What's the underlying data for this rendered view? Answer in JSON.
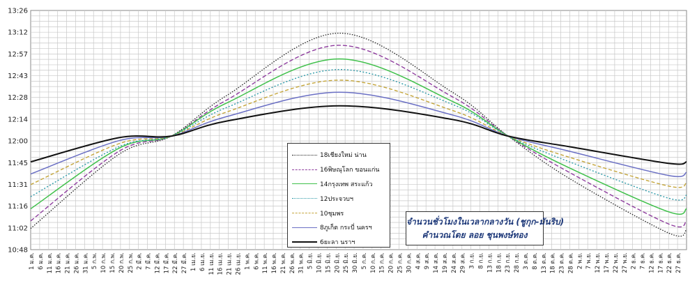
{
  "chart_data": {
    "type": "line",
    "title": "",
    "xlabel": "",
    "ylabel": "",
    "y_tick_labels": [
      "10:48",
      "11:02",
      "11:16",
      "11:31",
      "11:45",
      "12:00",
      "12:14",
      "12:28",
      "12:43",
      "12:57",
      "13:12",
      "13:26"
    ],
    "ylim_minutes": [
      648,
      806
    ],
    "x_tick_labels": [
      "1 ม.ค.",
      "6 ม.ค.",
      "11 ม.ค.",
      "16 ม.ค.",
      "21 ม.ค.",
      "26 ม.ค.",
      "31 ม.ค.",
      "5 ก.พ.",
      "10 ก.พ.",
      "15 ก.พ.",
      "20 ก.พ.",
      "25 ก.พ.",
      "2 มี.ค.",
      "7 มี.ค.",
      "12 มี.ค.",
      "17 มี.ค.",
      "22 มี.ค.",
      "27 มี.ค.",
      "1 เม.ย.",
      "6 เม.ย.",
      "11 เม.ย.",
      "16 เม.ย.",
      "21 เม.ย.",
      "26 เม.ย.",
      "1 พ.ค.",
      "6 พ.ค.",
      "11 พ.ค.",
      "16 พ.ค.",
      "21 พ.ค.",
      "26 พ.ค.",
      "31 พ.ค.",
      "5 มิ.ย.",
      "10 มิ.ย.",
      "15 มิ.ย.",
      "20 มิ.ย.",
      "25 มิ.ย.",
      "30 มิ.ย.",
      "5 ก.ค.",
      "10 ก.ค.",
      "15 ก.ค.",
      "20 ก.ค.",
      "25 ก.ค.",
      "30 ก.ค.",
      "4 ส.ค.",
      "9 ส.ค.",
      "14 ส.ค.",
      "19 ส.ค.",
      "24 ส.ค.",
      "29 ส.ค.",
      "3 ก.ย.",
      "8 ก.ย.",
      "13 ก.ย.",
      "18 ก.ย.",
      "23 ก.ย.",
      "28 ก.ย.",
      "3 ต.ค.",
      "8 ต.ค.",
      "13 ต.ค.",
      "18 ต.ค.",
      "23 ต.ค.",
      "28 ต.ค.",
      "2 พ.ย.",
      "7 พ.ย.",
      "12 พ.ย.",
      "17 พ.ย.",
      "22 พ.ย.",
      "27 พ.ย.",
      "2 ธ.ค.",
      "7 ธ.ค.",
      "12 ธ.ค.",
      "17 ธ.ค.",
      "22 ธ.ค.",
      "27 ธ.ค."
    ],
    "grid": true,
    "legend_position": "center-bottom",
    "x_day_of_year": [
      1,
      50,
      79,
      110,
      172,
      235,
      266,
      300,
      355,
      365
    ],
    "series": [
      {
        "name": "18เชียงใหม่ น่าน",
        "color": "#222222",
        "dash": "1.5,2",
        "values_minutes": [
          662,
          711,
          723,
          750,
          791,
          752,
          723,
          695,
          659,
          661
        ]
      },
      {
        "name": "16พิษณุโลก ขอนแก่น",
        "color": "#8e3c9e",
        "dash": "6,3",
        "values_minutes": [
          667,
          713,
          723,
          747,
          783,
          749,
          723,
          699,
          665,
          667
        ]
      },
      {
        "name": "14กรุงเทพ สระแก้ว",
        "color": "#3fc04a",
        "dash": "",
        "values_minutes": [
          675,
          715,
          723,
          745,
          774,
          746,
          723,
          702,
          673,
          675
        ]
      },
      {
        "name": "12ประจวบฯ",
        "color": "#2e9aa8",
        "dash": "2,2.5",
        "values_minutes": [
          683,
          716,
          723,
          742,
          767,
          744,
          723,
          706,
          682,
          684
        ]
      },
      {
        "name": "10ชุมพร",
        "color": "#c4a53a",
        "dash": "5,3",
        "values_minutes": [
          691,
          718,
          723,
          739,
          760,
          740,
          723,
          709,
          690,
          692
        ]
      },
      {
        "name": "8ภูเก็ต กระบี่ นครฯ",
        "color": "#6a6fc4",
        "dash": "",
        "values_minutes": [
          698,
          720,
          723,
          736,
          752,
          737,
          723,
          713,
          697,
          699
        ]
      },
      {
        "name": "6ยะลา นราฯ",
        "color": "#111111",
        "dash": "",
        "values_minutes": [
          706,
          722,
          723,
          733,
          743,
          734,
          723,
          716,
          705,
          706
        ]
      }
    ],
    "annotation": {
      "line1": "จำนวนชั่วโมงในเวลากลางวัน (ชูกุก-มันริบ)",
      "line2": "คำนวณโดย ลอย ชุนพงษ์ทอง"
    }
  }
}
